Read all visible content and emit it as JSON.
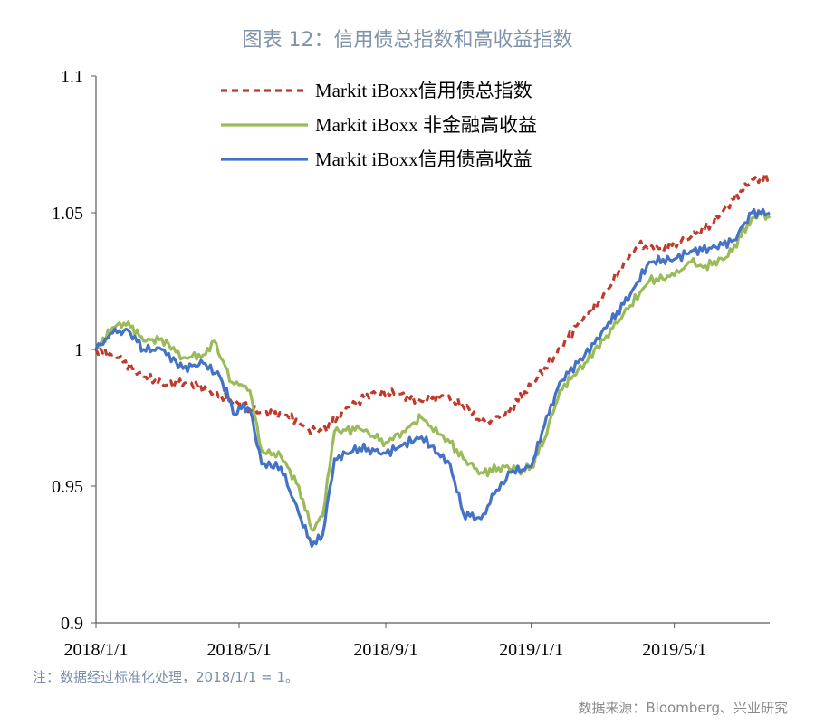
{
  "chart_data": {
    "type": "line",
    "title": "图表 12：信用债总指数和高收益指数",
    "xlabel": "",
    "ylabel": "",
    "x_ticks": [
      "2018/1/1",
      "2018/5/1",
      "2018/9/1",
      "2019/1/1",
      "2019/5/1"
    ],
    "y_ticks": [
      "0.9",
      "0.95",
      "1",
      "1.05",
      "1.1"
    ],
    "ylim": [
      0.9,
      1.1
    ],
    "xlim": [
      "2018-01-01",
      "2019-07-20"
    ],
    "legend_position": "top-center",
    "grid": false,
    "series": [
      {
        "name": "Markit iBoxx信用债总指数",
        "color": "#c0392b",
        "style": "dashed",
        "points": [
          [
            "2018-01-01",
            1.0
          ],
          [
            "2018-01-20",
            0.997
          ],
          [
            "2018-02-10",
            0.99
          ],
          [
            "2018-03-01",
            0.987
          ],
          [
            "2018-03-20",
            0.988
          ],
          [
            "2018-04-10",
            0.984
          ],
          [
            "2018-05-01",
            0.98
          ],
          [
            "2018-05-20",
            0.977
          ],
          [
            "2018-06-10",
            0.976
          ],
          [
            "2018-06-28",
            0.971
          ],
          [
            "2018-07-10",
            0.97
          ],
          [
            "2018-08-01",
            0.979
          ],
          [
            "2018-08-20",
            0.984
          ],
          [
            "2018-09-10",
            0.984
          ],
          [
            "2018-10-01",
            0.981
          ],
          [
            "2018-10-20",
            0.983
          ],
          [
            "2018-11-10",
            0.978
          ],
          [
            "2018-11-20",
            0.973
          ],
          [
            "2018-12-10",
            0.976
          ],
          [
            "2019-01-01",
            0.987
          ],
          [
            "2019-01-20",
            0.997
          ],
          [
            "2019-02-10",
            1.01
          ],
          [
            "2019-03-01",
            1.018
          ],
          [
            "2019-03-20",
            1.032
          ],
          [
            "2019-04-01",
            1.038
          ],
          [
            "2019-04-20",
            1.037
          ],
          [
            "2019-05-10",
            1.04
          ],
          [
            "2019-06-01",
            1.046
          ],
          [
            "2019-06-20",
            1.055
          ],
          [
            "2019-07-05",
            1.062
          ],
          [
            "2019-07-20",
            1.063
          ]
        ]
      },
      {
        "name": "Markit iBoxx 非金融高收益",
        "color": "#9bbb59",
        "style": "solid",
        "points": [
          [
            "2018-01-01",
            1.0
          ],
          [
            "2018-01-15",
            1.008
          ],
          [
            "2018-01-28",
            1.01
          ],
          [
            "2018-02-10",
            1.003
          ],
          [
            "2018-02-25",
            1.004
          ],
          [
            "2018-03-15",
            0.997
          ],
          [
            "2018-04-01",
            0.998
          ],
          [
            "2018-04-10",
            1.003
          ],
          [
            "2018-04-25",
            0.988
          ],
          [
            "2018-05-01",
            0.987
          ],
          [
            "2018-05-10",
            0.985
          ],
          [
            "2018-05-20",
            0.963
          ],
          [
            "2018-06-05",
            0.961
          ],
          [
            "2018-06-20",
            0.95
          ],
          [
            "2018-07-01",
            0.934
          ],
          [
            "2018-07-10",
            0.939
          ],
          [
            "2018-07-20",
            0.97
          ],
          [
            "2018-08-10",
            0.971
          ],
          [
            "2018-09-01",
            0.966
          ],
          [
            "2018-09-15",
            0.97
          ],
          [
            "2018-10-01",
            0.975
          ],
          [
            "2018-10-15",
            0.969
          ],
          [
            "2018-10-25",
            0.966
          ],
          [
            "2018-11-05",
            0.96
          ],
          [
            "2018-11-20",
            0.955
          ],
          [
            "2018-12-10",
            0.957
          ],
          [
            "2018-12-25",
            0.956
          ],
          [
            "2019-01-01",
            0.957
          ],
          [
            "2019-01-12",
            0.967
          ],
          [
            "2019-01-25",
            0.985
          ],
          [
            "2019-02-15",
            0.995
          ],
          [
            "2019-03-05",
            1.005
          ],
          [
            "2019-03-25",
            1.016
          ],
          [
            "2019-04-10",
            1.025
          ],
          [
            "2019-05-01",
            1.027
          ],
          [
            "2019-05-15",
            1.032
          ],
          [
            "2019-05-25",
            1.03
          ],
          [
            "2019-06-15",
            1.034
          ],
          [
            "2019-07-05",
            1.048
          ],
          [
            "2019-07-15",
            1.05
          ],
          [
            "2019-07-20",
            1.048
          ]
        ]
      },
      {
        "name": "Markit iBoxx信用债高收益",
        "color": "#4472c4",
        "style": "solid",
        "points": [
          [
            "2018-01-01",
            1.0
          ],
          [
            "2018-01-15",
            1.006
          ],
          [
            "2018-01-28",
            1.007
          ],
          [
            "2018-02-10",
            1.0
          ],
          [
            "2018-02-25",
            1.0
          ],
          [
            "2018-03-15",
            0.993
          ],
          [
            "2018-04-01",
            0.995
          ],
          [
            "2018-04-15",
            0.99
          ],
          [
            "2018-04-28",
            0.976
          ],
          [
            "2018-05-01",
            0.979
          ],
          [
            "2018-05-10",
            0.978
          ],
          [
            "2018-05-20",
            0.958
          ],
          [
            "2018-06-05",
            0.957
          ],
          [
            "2018-06-20",
            0.94
          ],
          [
            "2018-07-01",
            0.928
          ],
          [
            "2018-07-10",
            0.932
          ],
          [
            "2018-07-20",
            0.96
          ],
          [
            "2018-08-10",
            0.964
          ],
          [
            "2018-09-01",
            0.962
          ],
          [
            "2018-09-15",
            0.965
          ],
          [
            "2018-10-01",
            0.968
          ],
          [
            "2018-10-15",
            0.962
          ],
          [
            "2018-10-25",
            0.958
          ],
          [
            "2018-11-05",
            0.94
          ],
          [
            "2018-11-20",
            0.938
          ],
          [
            "2018-12-01",
            0.947
          ],
          [
            "2018-12-15",
            0.955
          ],
          [
            "2019-01-01",
            0.957
          ],
          [
            "2019-01-12",
            0.972
          ],
          [
            "2019-01-25",
            0.988
          ],
          [
            "2019-02-15",
            0.998
          ],
          [
            "2019-03-05",
            1.008
          ],
          [
            "2019-03-25",
            1.02
          ],
          [
            "2019-04-10",
            1.032
          ],
          [
            "2019-05-01",
            1.033
          ],
          [
            "2019-05-15",
            1.036
          ],
          [
            "2019-06-01",
            1.037
          ],
          [
            "2019-06-20",
            1.04
          ],
          [
            "2019-07-05",
            1.05
          ],
          [
            "2019-07-20",
            1.05
          ]
        ]
      }
    ]
  },
  "footer": {
    "note": "注：数据经过标准化处理，2018/1/1 = 1。",
    "source": "数据来源：Bloomberg、兴业研究"
  }
}
